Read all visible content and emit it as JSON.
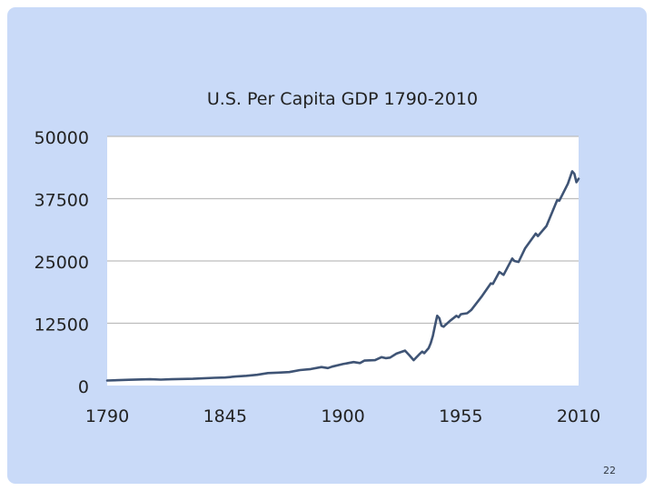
{
  "slide": {
    "page_number": "22"
  },
  "chart_data": {
    "type": "line",
    "title": "U.S. Per Capita GDP 1790-2010",
    "xlabel": "",
    "ylabel": "",
    "xlim": [
      1790,
      2010
    ],
    "ylim": [
      0,
      50000
    ],
    "x_ticks": [
      1790,
      1845,
      1900,
      1955,
      2010
    ],
    "y_ticks": [
      0,
      12500,
      25000,
      37500,
      50000
    ],
    "grid": true,
    "legend": "none",
    "line_color": "#3f5475",
    "series": [
      {
        "name": "",
        "points": [
          [
            1790,
            1000
          ],
          [
            1800,
            1150
          ],
          [
            1810,
            1250
          ],
          [
            1815,
            1180
          ],
          [
            1820,
            1250
          ],
          [
            1830,
            1350
          ],
          [
            1840,
            1550
          ],
          [
            1845,
            1600
          ],
          [
            1850,
            1800
          ],
          [
            1855,
            1950
          ],
          [
            1860,
            2150
          ],
          [
            1865,
            2500
          ],
          [
            1870,
            2600
          ],
          [
            1875,
            2700
          ],
          [
            1880,
            3100
          ],
          [
            1885,
            3300
          ],
          [
            1890,
            3700
          ],
          [
            1893,
            3500
          ],
          [
            1895,
            3800
          ],
          [
            1900,
            4300
          ],
          [
            1905,
            4700
          ],
          [
            1908,
            4500
          ],
          [
            1910,
            5000
          ],
          [
            1915,
            5100
          ],
          [
            1918,
            5700
          ],
          [
            1920,
            5500
          ],
          [
            1922,
            5600
          ],
          [
            1925,
            6400
          ],
          [
            1929,
            7000
          ],
          [
            1931,
            6100
          ],
          [
            1933,
            5100
          ],
          [
            1936,
            6400
          ],
          [
            1937,
            6800
          ],
          [
            1938,
            6500
          ],
          [
            1940,
            7500
          ],
          [
            1941,
            8500
          ],
          [
            1942,
            10000
          ],
          [
            1943,
            12000
          ],
          [
            1944,
            14000
          ],
          [
            1945,
            13500
          ],
          [
            1946,
            12000
          ],
          [
            1947,
            11800
          ],
          [
            1948,
            12200
          ],
          [
            1950,
            13000
          ],
          [
            1953,
            14000
          ],
          [
            1954,
            13700
          ],
          [
            1955,
            14300
          ],
          [
            1958,
            14500
          ],
          [
            1960,
            15200
          ],
          [
            1965,
            18000
          ],
          [
            1969,
            20500
          ],
          [
            1970,
            20400
          ],
          [
            1973,
            22800
          ],
          [
            1975,
            22200
          ],
          [
            1979,
            25500
          ],
          [
            1980,
            25000
          ],
          [
            1982,
            24800
          ],
          [
            1985,
            27500
          ],
          [
            1990,
            30500
          ],
          [
            1991,
            30000
          ],
          [
            1995,
            32000
          ],
          [
            2000,
            37200
          ],
          [
            2001,
            37100
          ],
          [
            2005,
            40500
          ],
          [
            2007,
            43000
          ],
          [
            2008,
            42500
          ],
          [
            2009,
            40800
          ],
          [
            2010,
            41500
          ]
        ]
      }
    ]
  }
}
